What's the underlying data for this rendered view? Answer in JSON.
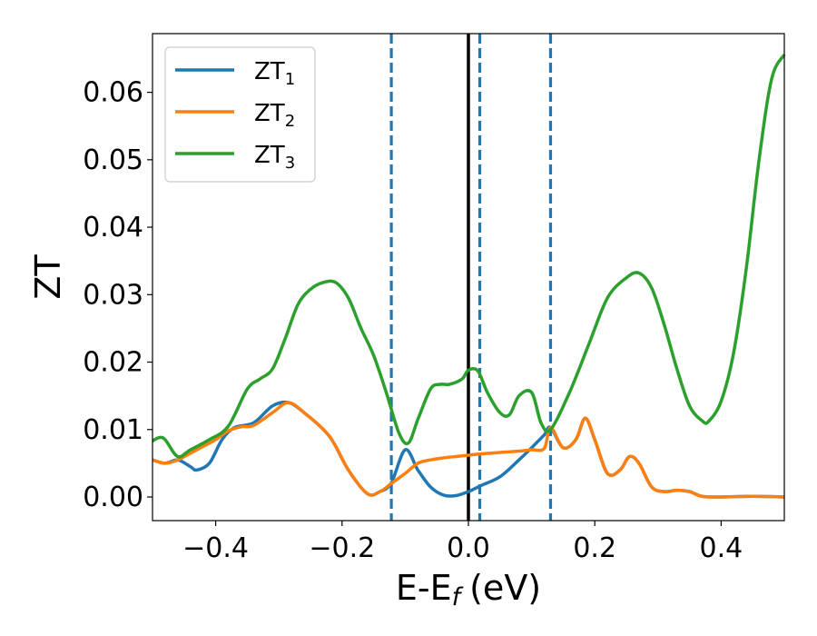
{
  "chart_data": {
    "type": "line",
    "title": "",
    "xlabel": "E-E",
    "xlabel_subscript": "f",
    "xlabel_suffix": "(eV)",
    "ylabel": "ZT",
    "xlim": [
      -0.5,
      0.5
    ],
    "ylim": [
      -0.0035,
      0.0687
    ],
    "x_ticks": [
      -0.4,
      -0.2,
      0.0,
      0.2,
      0.4
    ],
    "x_tick_labels": [
      "−0.4",
      "−0.2",
      "0.0",
      "0.2",
      "0.4"
    ],
    "y_ticks": [
      0.0,
      0.01,
      0.02,
      0.03,
      0.04,
      0.05,
      0.06
    ],
    "y_tick_labels": [
      "0.00",
      "0.01",
      "0.02",
      "0.03",
      "0.04",
      "0.05",
      "0.06"
    ],
    "grid": false,
    "legend_position": "top-left",
    "vertical_lines": [
      {
        "x": -0.122,
        "style": "dashed",
        "color": "#1f77b4"
      },
      {
        "x": 0.0,
        "style": "solid",
        "color": "#000000"
      },
      {
        "x": 0.018,
        "style": "dashed",
        "color": "#1f77b4"
      },
      {
        "x": 0.13,
        "style": "dashed",
        "color": "#1f77b4"
      }
    ],
    "series": [
      {
        "name": "ZT",
        "subscript": "1",
        "color": "#1f77b4",
        "x": [
          -0.5,
          -0.48,
          -0.46,
          -0.44,
          -0.43,
          -0.41,
          -0.39,
          -0.37,
          -0.34,
          -0.31,
          -0.285,
          -0.26,
          -0.22,
          -0.19,
          -0.16,
          -0.14,
          -0.122,
          -0.1,
          -0.08,
          -0.06,
          -0.04,
          -0.02,
          0.0,
          0.02,
          0.05,
          0.08,
          0.1,
          0.12,
          0.13,
          0.15,
          0.17,
          0.185,
          0.2,
          0.22,
          0.24,
          0.255,
          0.27,
          0.29,
          0.31,
          0.33,
          0.35,
          0.37,
          0.4,
          0.45,
          0.5
        ],
        "y": [
          0.0055,
          0.005,
          0.0055,
          0.0045,
          0.004,
          0.005,
          0.0085,
          0.0103,
          0.011,
          0.0135,
          0.014,
          0.0125,
          0.009,
          0.004,
          0.0005,
          0.0008,
          0.0021,
          0.007,
          0.004,
          0.0015,
          0.0003,
          0.0002,
          0.0008,
          0.0017,
          0.003,
          0.0055,
          0.0073,
          0.0092,
          0.0103,
          0.0073,
          0.0085,
          0.0117,
          0.0085,
          0.0035,
          0.004,
          0.006,
          0.005,
          0.0015,
          0.0008,
          0.001,
          0.0008,
          0.0001,
          0.0,
          0.0001,
          0.0
        ]
      },
      {
        "name": "ZT",
        "subscript": "2",
        "color": "#ff7f0e",
        "x": [
          -0.5,
          -0.48,
          -0.46,
          -0.44,
          -0.42,
          -0.4,
          -0.38,
          -0.36,
          -0.34,
          -0.31,
          -0.285,
          -0.26,
          -0.22,
          -0.19,
          -0.16,
          -0.14,
          -0.122,
          -0.1,
          -0.08,
          -0.06,
          -0.04,
          -0.02,
          0.0,
          0.02,
          0.05,
          0.08,
          0.1,
          0.12,
          0.13,
          0.15,
          0.17,
          0.185,
          0.2,
          0.22,
          0.24,
          0.255,
          0.27,
          0.29,
          0.31,
          0.33,
          0.35,
          0.37,
          0.4,
          0.45,
          0.5
        ],
        "y": [
          0.0055,
          0.005,
          0.0055,
          0.0065,
          0.0075,
          0.0085,
          0.0098,
          0.0104,
          0.0106,
          0.0125,
          0.014,
          0.0125,
          0.009,
          0.004,
          0.0005,
          0.0008,
          0.002,
          0.0035,
          0.005,
          0.0055,
          0.0058,
          0.006,
          0.0062,
          0.0064,
          0.0066,
          0.0068,
          0.007,
          0.0072,
          0.0103,
          0.0073,
          0.0085,
          0.0117,
          0.0085,
          0.0035,
          0.004,
          0.006,
          0.005,
          0.0015,
          0.0008,
          0.001,
          0.0008,
          0.0001,
          0.0,
          0.0001,
          0.0
        ]
      },
      {
        "name": "ZT",
        "subscript": "3",
        "color": "#2ca02c",
        "x": [
          -0.5,
          -0.49,
          -0.48,
          -0.46,
          -0.44,
          -0.41,
          -0.38,
          -0.35,
          -0.33,
          -0.31,
          -0.29,
          -0.27,
          -0.25,
          -0.23,
          -0.21,
          -0.19,
          -0.17,
          -0.15,
          -0.13,
          -0.11,
          -0.095,
          -0.08,
          -0.06,
          -0.045,
          -0.03,
          -0.01,
          0.0,
          0.015,
          0.03,
          0.05,
          0.065,
          0.08,
          0.1,
          0.115,
          0.13,
          0.16,
          0.19,
          0.22,
          0.25,
          0.27,
          0.29,
          0.31,
          0.33,
          0.35,
          0.37,
          0.38,
          0.4,
          0.42,
          0.44,
          0.46,
          0.48,
          0.5
        ],
        "y": [
          0.0083,
          0.0088,
          0.0085,
          0.006,
          0.007,
          0.0085,
          0.0105,
          0.016,
          0.0175,
          0.019,
          0.0235,
          0.0285,
          0.0308,
          0.0318,
          0.0318,
          0.0295,
          0.025,
          0.021,
          0.0155,
          0.0095,
          0.008,
          0.0115,
          0.016,
          0.0167,
          0.0167,
          0.0175,
          0.0188,
          0.0187,
          0.0155,
          0.0125,
          0.0122,
          0.015,
          0.0155,
          0.011,
          0.01,
          0.0155,
          0.0225,
          0.0295,
          0.0325,
          0.0332,
          0.031,
          0.0255,
          0.019,
          0.0135,
          0.0113,
          0.0112,
          0.0142,
          0.0215,
          0.034,
          0.05,
          0.062,
          0.0656
        ]
      }
    ]
  }
}
